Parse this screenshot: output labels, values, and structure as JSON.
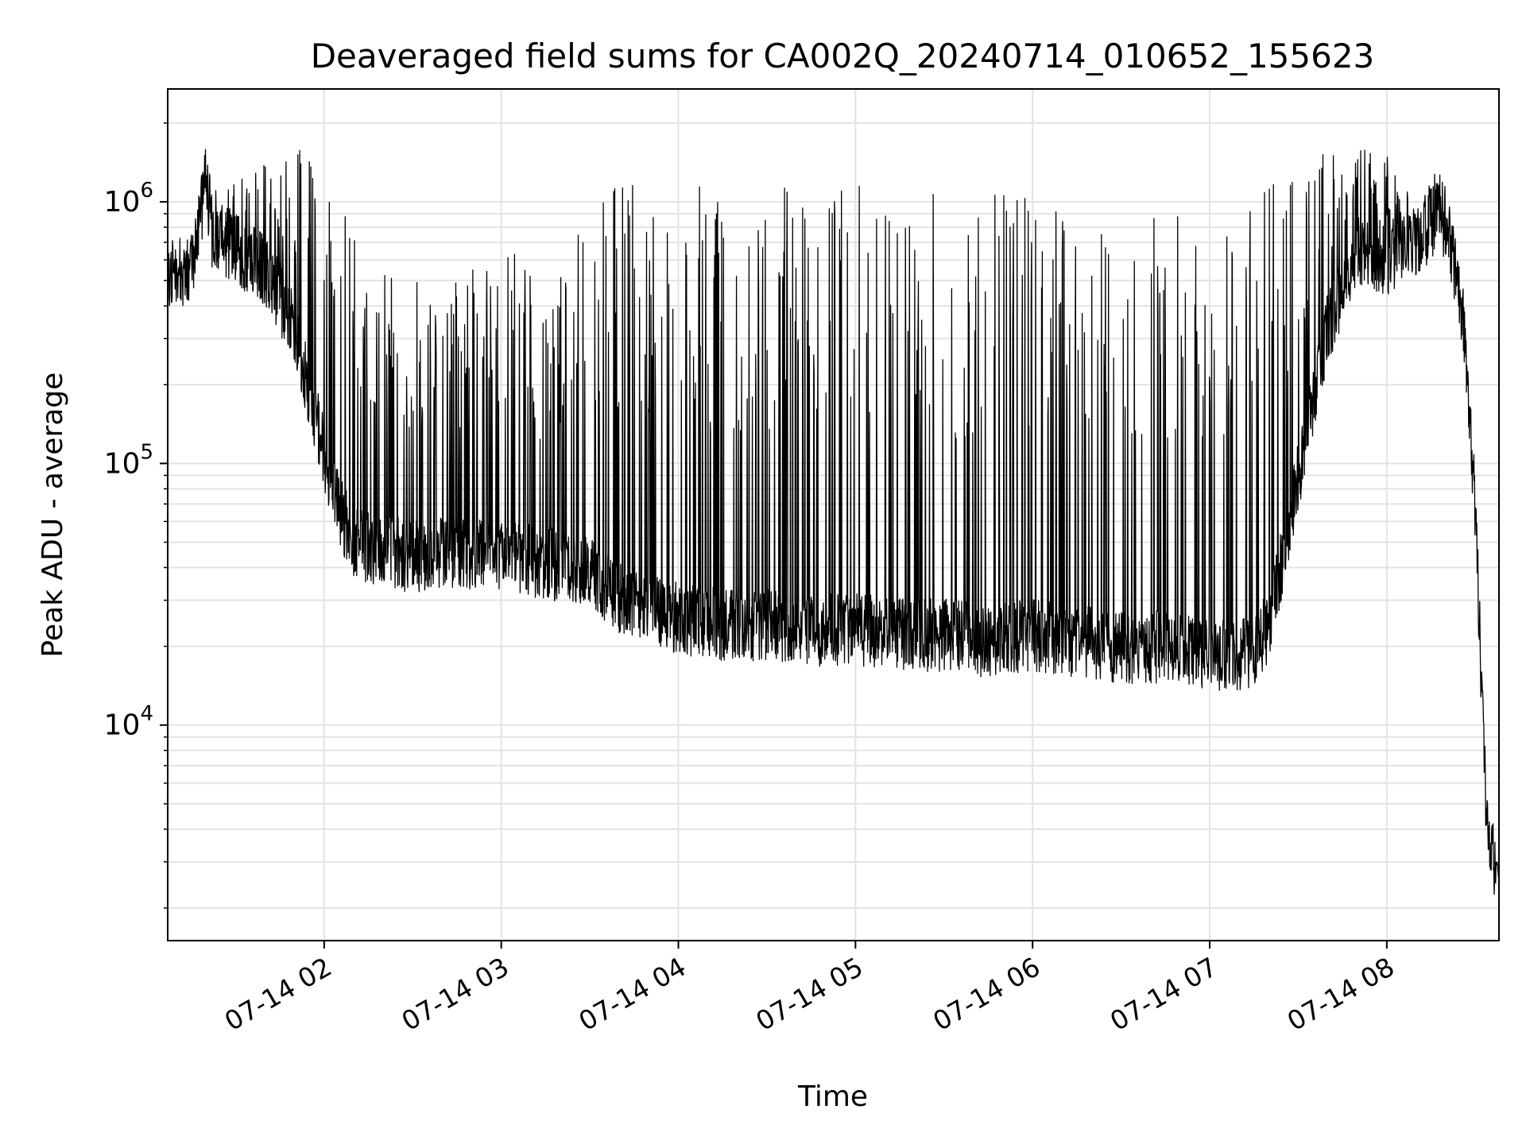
{
  "chart_data": {
    "type": "line",
    "title": "Deaveraged field sums for CA002Q_20240714_010652_155623",
    "xlabel": "Time",
    "ylabel": "Peak ADU - average",
    "yscale": "log",
    "xlim": [
      "2024-07-14 01:07",
      "2024-07-14 08:38"
    ],
    "ylim": [
      1500,
      2700000
    ],
    "grid": true,
    "x_ticks": [
      "07-14 02",
      "07-14 03",
      "07-14 04",
      "07-14 05",
      "07-14 06",
      "07-14 07",
      "07-14 08"
    ],
    "x_tick_times": [
      "2024-07-14 02:00",
      "2024-07-14 03:00",
      "2024-07-14 04:00",
      "2024-07-14 05:00",
      "2024-07-14 06:00",
      "2024-07-14 07:00",
      "2024-07-14 08:00"
    ],
    "y_ticks": [
      {
        "base": "10",
        "exp": "4",
        "value": 10000
      },
      {
        "base": "10",
        "exp": "5",
        "value": 100000
      },
      {
        "base": "10",
        "exp": "6",
        "value": 1000000
      }
    ],
    "line_color": "#000000",
    "series": [
      {
        "x": [
          "2024-07-14 01:07",
          "2024-07-14 01:15",
          "2024-07-14 01:20",
          "2024-07-14 01:22",
          "2024-07-14 01:30",
          "2024-07-14 01:40",
          "2024-07-14 01:50",
          "2024-07-14 02:00",
          "2024-07-14 02:05",
          "2024-07-14 02:10",
          "2024-07-14 02:20",
          "2024-07-14 02:30",
          "2024-07-14 02:45",
          "2024-07-14 03:00",
          "2024-07-14 03:15",
          "2024-07-14 03:30",
          "2024-07-14 03:40",
          "2024-07-14 03:50",
          "2024-07-14 04:00",
          "2024-07-14 04:15",
          "2024-07-14 04:30",
          "2024-07-14 04:45",
          "2024-07-14 05:00",
          "2024-07-14 05:15",
          "2024-07-14 05:30",
          "2024-07-14 05:45",
          "2024-07-14 06:00",
          "2024-07-14 06:15",
          "2024-07-14 06:30",
          "2024-07-14 06:45",
          "2024-07-14 07:00",
          "2024-07-14 07:15",
          "2024-07-14 07:20",
          "2024-07-14 07:25",
          "2024-07-14 07:30",
          "2024-07-14 07:40",
          "2024-07-14 07:50",
          "2024-07-14 08:00",
          "2024-07-14 08:10",
          "2024-07-14 08:18",
          "2024-07-14 08:22",
          "2024-07-14 08:26",
          "2024-07-14 08:30",
          "2024-07-14 08:34",
          "2024-07-14 08:38"
        ],
        "baseline": [
          500000,
          500000,
          1100000,
          700000,
          600000,
          500000,
          300000,
          100000,
          60000,
          45000,
          42000,
          40000,
          42000,
          40000,
          38000,
          35000,
          28000,
          25000,
          23000,
          22000,
          22000,
          21000,
          21000,
          20000,
          20000,
          19000,
          20000,
          19000,
          18000,
          18000,
          17000,
          17000,
          22000,
          40000,
          80000,
          300000,
          600000,
          550000,
          650000,
          800000,
          600000,
          300000,
          60000,
          3500,
          2200
        ],
        "peaks": [
          550000,
          600000,
          1300000,
          1100000,
          1200000,
          1500000,
          1700000,
          1300000,
          1000000,
          750000,
          550000,
          600000,
          500000,
          700000,
          500000,
          1200000,
          1200000,
          1200000,
          1200000,
          1100000,
          1100000,
          1200000,
          1200000,
          1100000,
          1100000,
          1100000,
          1100000,
          1100000,
          1100000,
          1050000,
          1000000,
          1100000,
          1200000,
          1300000,
          1400000,
          1600000,
          1700000,
          1500000,
          1000000,
          1400000,
          900000,
          400000,
          80000,
          5000,
          2800
        ],
        "minimum_shown": 1800
      }
    ]
  }
}
